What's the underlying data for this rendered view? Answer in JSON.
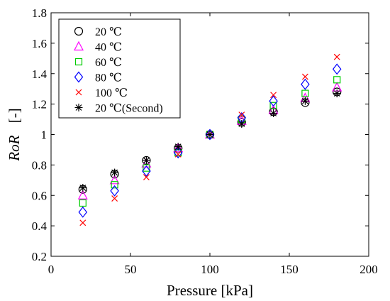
{
  "chart_data": {
    "type": "scatter",
    "title": "",
    "xlabel": "Pressure [kPa]",
    "ylabel_italic": "RoR",
    "ylabel_unit": "[-]",
    "xlim": [
      0,
      200
    ],
    "ylim": [
      0.2,
      1.8
    ],
    "xticks": [
      0,
      50,
      100,
      150,
      200
    ],
    "yticks": [
      0.2,
      0.4,
      0.6,
      0.8,
      1,
      1.2,
      1.4,
      1.6,
      1.8
    ],
    "xtick_labels": [
      "0",
      "50",
      "100",
      "150",
      "200"
    ],
    "ytick_labels": [
      "0.2",
      "0.4",
      "0.6",
      "0.8",
      "1",
      "1.2",
      "1.4",
      "1.6",
      "1.8"
    ],
    "grid": false,
    "legend_position": "top-left",
    "x": [
      20,
      40,
      60,
      80,
      100,
      120,
      140,
      160,
      180
    ],
    "series": [
      {
        "name": "20 ℃",
        "marker": "circle",
        "color": "#000000",
        "values": [
          0.64,
          0.74,
          0.83,
          0.91,
          1.0,
          1.08,
          1.15,
          1.21,
          1.28
        ]
      },
      {
        "name": "40 ℃",
        "marker": "triangle",
        "color": "#ff00ff",
        "values": [
          0.6,
          0.7,
          0.81,
          0.91,
          1.0,
          1.09,
          1.16,
          1.24,
          1.31
        ]
      },
      {
        "name": "60 ℃",
        "marker": "square",
        "color": "#00cc00",
        "values": [
          0.55,
          0.67,
          0.78,
          0.88,
          1.0,
          1.1,
          1.19,
          1.27,
          1.36
        ]
      },
      {
        "name": "80 ℃",
        "marker": "diamond",
        "color": "#0000ff",
        "values": [
          0.49,
          0.63,
          0.76,
          0.88,
          1.0,
          1.11,
          1.22,
          1.33,
          1.43
        ]
      },
      {
        "name": "100 ℃",
        "marker": "x",
        "color": "#ff0000",
        "values": [
          0.42,
          0.58,
          0.72,
          0.87,
          1.0,
          1.13,
          1.26,
          1.38,
          1.51
        ]
      },
      {
        "name": "20 ℃(Second)",
        "marker": "star",
        "color": "#000000",
        "values": [
          0.65,
          0.75,
          0.83,
          0.92,
          1.0,
          1.07,
          1.14,
          1.22,
          1.27
        ]
      }
    ]
  }
}
